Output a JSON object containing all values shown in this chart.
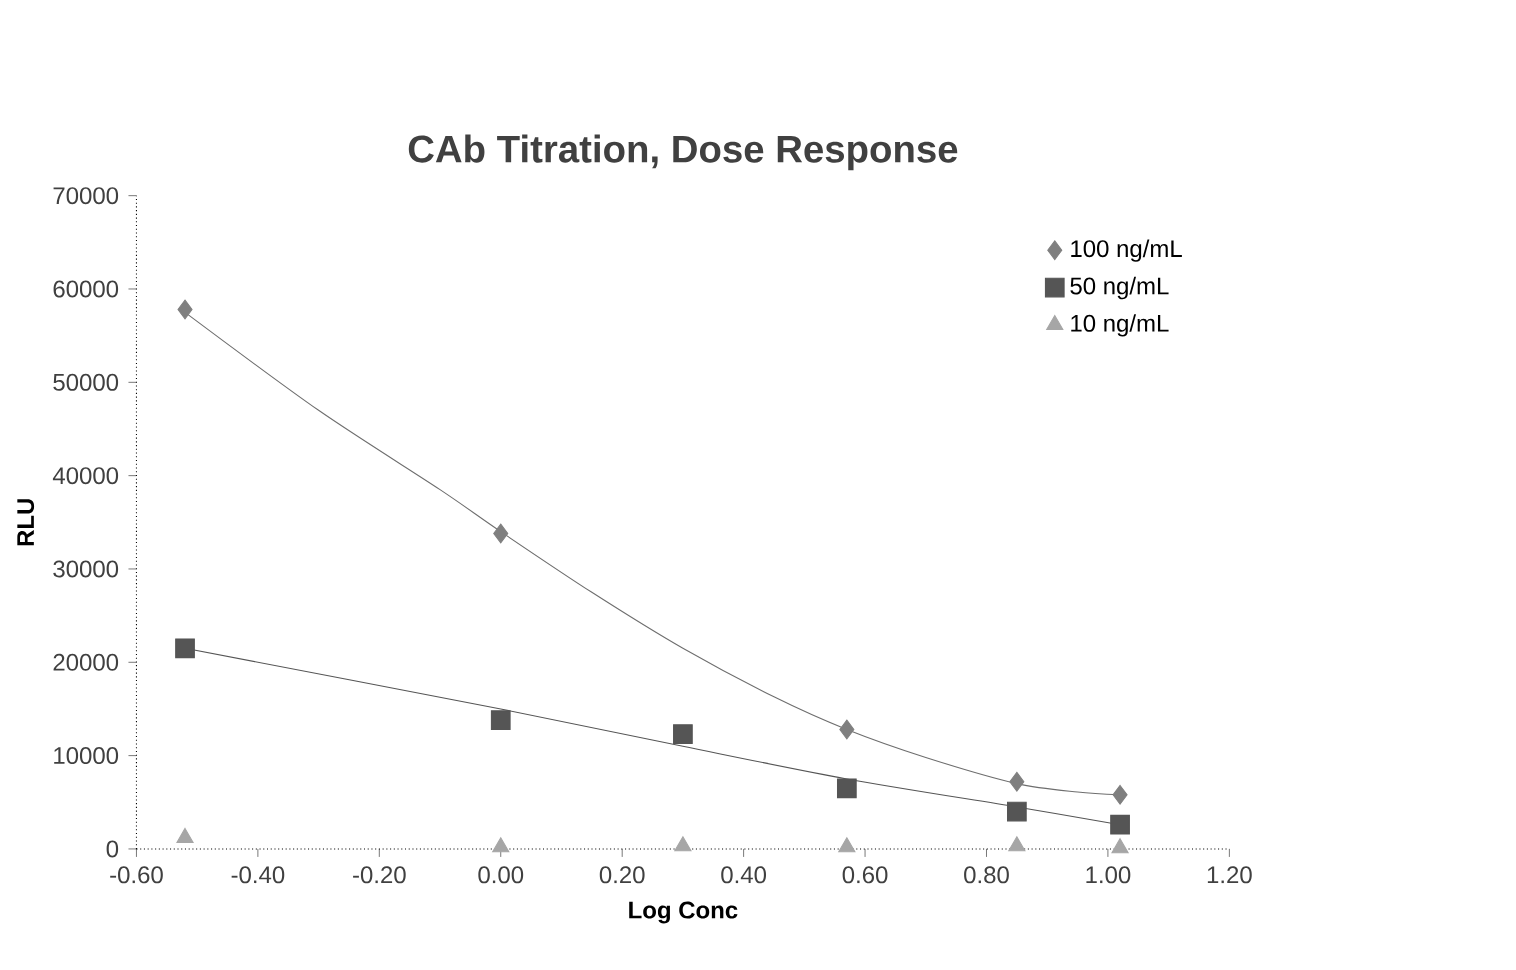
{
  "chart_data": {
    "type": "scatter",
    "title": "CAb Titration, Dose Response",
    "xlabel": "Log Conc",
    "ylabel": "RLU",
    "xlim": [
      -0.6,
      1.2
    ],
    "xticks": [
      {
        "value": -0.6,
        "label": "-0.60"
      },
      {
        "value": -0.4,
        "label": "-0.40"
      },
      {
        "value": -0.2,
        "label": "-0.20"
      },
      {
        "value": 0,
        "label": "0.00"
      },
      {
        "value": 0.2,
        "label": "0.20"
      },
      {
        "value": 0.4,
        "label": "0.40"
      },
      {
        "value": 0.6,
        "label": "0.60"
      },
      {
        "value": 0.8,
        "label": "0.80"
      },
      {
        "value": 1.0,
        "label": "1.00"
      },
      {
        "value": 1.2,
        "label": "1.20"
      }
    ],
    "ylim": [
      0,
      70000
    ],
    "yticks": [
      0,
      10000,
      20000,
      30000,
      40000,
      50000,
      60000,
      70000
    ],
    "grid": false,
    "legend": "top right",
    "series": [
      {
        "name": "100 ng/mL",
        "color": "#7f7f7f",
        "marker": "diamond",
        "x": [
          -0.52,
          0,
          0.57,
          0.85,
          1.02
        ],
        "values": [
          57800,
          33800,
          12800,
          7200,
          5800
        ]
      },
      {
        "name": "50 ng/mL",
        "color": "#555555",
        "marker": "square",
        "x": [
          -0.52,
          0,
          0.3,
          0.57,
          0.85,
          1.02
        ],
        "values": [
          21500,
          13800,
          12300,
          6500,
          4000,
          2600
        ]
      },
      {
        "name": "10 ng/mL",
        "color": "#a6a6a6",
        "marker": "triangle",
        "x": [
          -0.52,
          0,
          0.3,
          0.57,
          0.85,
          1.02
        ],
        "values": [
          1200,
          200,
          300,
          200,
          300,
          100
        ]
      },
      {
        "type": "line",
        "color": "#6e6e6e",
        "x": [
          -0.52,
          -0.3,
          -0.1,
          0,
          0.15,
          0.3,
          0.45,
          0.57,
          0.7,
          0.85,
          0.95,
          1.02
        ],
        "values": [
          57500,
          47000,
          38500,
          34000,
          27500,
          21500,
          16300,
          12800,
          9800,
          7000,
          6100,
          5800
        ]
      },
      {
        "type": "line",
        "color": "#555555",
        "x": [
          -0.52,
          0,
          0.3,
          0.57,
          0.85,
          1.02
        ],
        "values": [
          21500,
          15000,
          11000,
          7500,
          4500,
          2600
        ]
      }
    ]
  }
}
